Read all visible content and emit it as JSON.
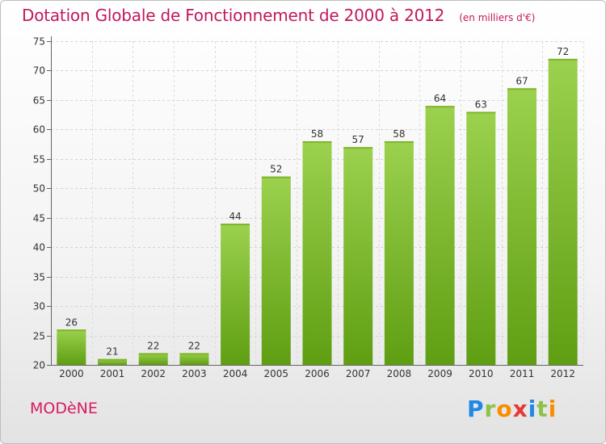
{
  "title": "Dotation Globale de Fonctionnement de 2000 à 2012",
  "unit": "(en milliers d'€)",
  "commune": "MODèNE",
  "logo": {
    "letters": [
      {
        "ch": "P",
        "color": "#1e88e5"
      },
      {
        "ch": "r",
        "color": "#8bc34a"
      },
      {
        "ch": "o",
        "color": "#fb8c00"
      },
      {
        "ch": "x",
        "color": "#e53935"
      },
      {
        "ch": "i",
        "color": "#1e88e5"
      },
      {
        "ch": "t",
        "color": "#8bc34a"
      },
      {
        "ch": "i",
        "color": "#fb8c00"
      }
    ]
  },
  "colors": {
    "bar_top": "#9bd14e",
    "bar_bottom": "#5f9e12",
    "title": "#c2185b"
  },
  "chart_data": {
    "type": "bar",
    "categories": [
      "2000",
      "2001",
      "2002",
      "2003",
      "2004",
      "2005",
      "2006",
      "2007",
      "2008",
      "2009",
      "2010",
      "2011",
      "2012"
    ],
    "values": [
      26,
      21,
      22,
      22,
      44,
      52,
      58,
      57,
      58,
      64,
      63,
      67,
      72
    ],
    "ylim": [
      20,
      75
    ],
    "yticks": [
      20,
      25,
      30,
      35,
      40,
      45,
      50,
      55,
      60,
      65,
      70,
      75
    ],
    "grid": true,
    "title": "Dotation Globale de Fonctionnement de 2000 à 2012",
    "xlabel": "",
    "ylabel": ""
  }
}
